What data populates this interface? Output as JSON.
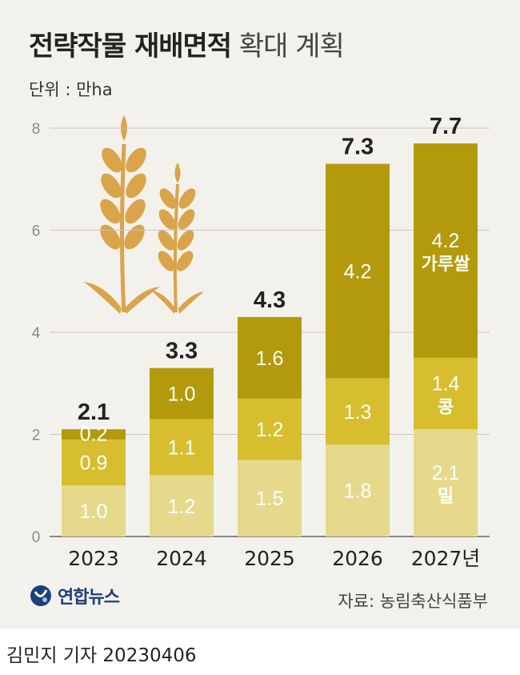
{
  "header": {
    "title_bold": "전략작물 재배면적",
    "title_light": "확대 계획",
    "unit": "단위 : 만ha"
  },
  "colors": {
    "seg1": "#e6d98c",
    "seg2": "#d6be2e",
    "seg3": "#b39a0c",
    "grid": "#c9c5bc",
    "axis": "#666666"
  },
  "chart_data": {
    "type": "bar",
    "stacked": true,
    "title": "전략작물 재배면적 확대 계획",
    "unit": "만ha",
    "categories": [
      "2023",
      "2024",
      "2025",
      "2026",
      "2027년"
    ],
    "series": [
      {
        "name": "밀",
        "values": [
          1.0,
          1.2,
          1.5,
          1.8,
          2.1
        ]
      },
      {
        "name": "콩",
        "values": [
          0.9,
          1.1,
          1.2,
          1.3,
          1.4
        ]
      },
      {
        "name": "가루쌀",
        "values": [
          0.2,
          1.0,
          1.6,
          4.2,
          4.2
        ]
      }
    ],
    "totals": [
      "2.1",
      "3.3",
      "4.3",
      "7.3",
      "7.7"
    ],
    "segment_labels": [
      [
        "1.0",
        "0.9",
        "0.2"
      ],
      [
        "1.2",
        "1.1",
        "1.0"
      ],
      [
        "1.5",
        "1.2",
        "1.6"
      ],
      [
        "1.8",
        "1.3",
        "4.2"
      ],
      [
        "2.1",
        "1.4",
        "4.2"
      ]
    ],
    "series_labels_on_last_bar": [
      "밀",
      "콩",
      "가루쌀"
    ],
    "yticks": [
      0,
      2,
      4,
      6,
      8
    ],
    "ylim": [
      0,
      8
    ]
  },
  "footer": {
    "logo": "연합뉴스",
    "source": "자료: 농림축산식품부",
    "byline": "김민지 기자  20230406"
  }
}
